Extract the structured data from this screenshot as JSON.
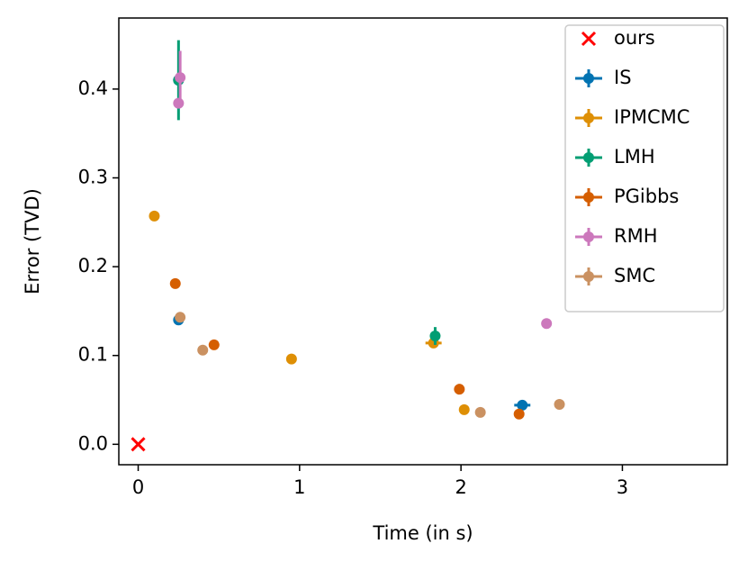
{
  "chart_data": {
    "type": "scatter",
    "xlabel": "Time (in s)",
    "ylabel": "Error (TVD)",
    "xlim": [
      -0.12,
      3.65
    ],
    "ylim": [
      -0.023,
      0.48
    ],
    "xticks": [
      0,
      1,
      2,
      3
    ],
    "yticks": [
      {
        "value": 0,
        "label": "0.0"
      },
      0.1,
      0.2,
      0.3,
      0.4
    ],
    "legend": "upper right",
    "series": [
      {
        "name": "ours",
        "color": "#ff0000",
        "marker": "x",
        "x": [
          0
        ],
        "values": [
          0
        ],
        "xerr": [
          0
        ],
        "yerr": [
          0
        ]
      },
      {
        "name": "IS",
        "color": "#0173b2",
        "marker": "o",
        "x": [
          0.25,
          0.25,
          2.38
        ],
        "values": [
          0.41,
          0.14,
          0.044
        ],
        "xerr": [
          0,
          0,
          0.05
        ],
        "yerr": [
          0,
          0,
          0
        ]
      },
      {
        "name": "IPMCMC",
        "color": "#de8f05",
        "marker": "o",
        "x": [
          0.1,
          0.95,
          1.83,
          2.02
        ],
        "values": [
          0.257,
          0.096,
          0.114,
          0.039
        ],
        "xerr": [
          0,
          0,
          0.05,
          0.03
        ],
        "yerr": [
          0,
          0,
          0,
          0
        ]
      },
      {
        "name": "LMH",
        "color": "#029e73",
        "marker": "o",
        "x": [
          0.25,
          1.84
        ],
        "values": [
          0.41,
          0.122
        ],
        "xerr": [
          0,
          0
        ],
        "yerr": [
          0.045,
          0.01
        ]
      },
      {
        "name": "PGibbs",
        "color": "#d55e00",
        "marker": "o",
        "x": [
          0.23,
          0.47,
          1.99,
          2.36
        ],
        "values": [
          0.181,
          0.112,
          0.062,
          0.034
        ],
        "xerr": [
          0,
          0,
          0,
          0
        ],
        "yerr": [
          0,
          0,
          0,
          0
        ]
      },
      {
        "name": "RMH",
        "color": "#cc78bc",
        "marker": "o",
        "x": [
          0.25,
          0.26,
          2.53
        ],
        "values": [
          0.384,
          0.413,
          0.136
        ],
        "xerr": [
          0,
          0,
          0.03
        ],
        "yerr": [
          0,
          0.03,
          0
        ]
      },
      {
        "name": "SMC",
        "color": "#ca9161",
        "marker": "o",
        "x": [
          0.26,
          0.4,
          2.12,
          2.61
        ],
        "values": [
          0.143,
          0.106,
          0.036,
          0.045
        ],
        "xerr": [
          0,
          0,
          0,
          0
        ],
        "yerr": [
          0,
          0,
          0,
          0
        ]
      }
    ]
  }
}
